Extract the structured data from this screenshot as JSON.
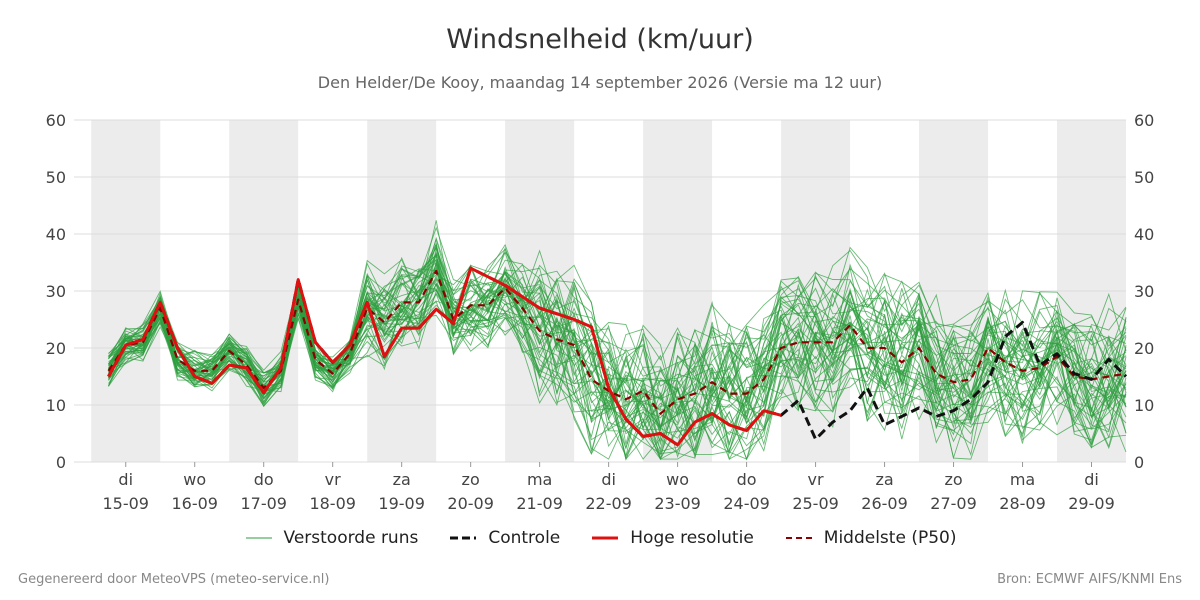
{
  "title": "Windsnelheid (km/uur)",
  "subtitle": "Den Helder/De Kooy, maandag 14 september 2026 (Versie ma 12 uur)",
  "footer_left": "Gegenereerd door MeteoVPS (meteo-service.nl)",
  "footer_right": "Bron: ECMWF AIFS/KNMI Ens",
  "colors": {
    "ensemble": "#2e9e3e",
    "control": "#111111",
    "high_res": "#e01010",
    "median": "#8b0000",
    "band": "#ececec",
    "grid": "#dddddd"
  },
  "legend": [
    {
      "label": "Verstoorde runs",
      "style": "thin-green",
      "color": "#2e9e3e"
    },
    {
      "label": "Controle",
      "style": "dashed-black",
      "color": "#111111"
    },
    {
      "label": "Hoge resolutie",
      "style": "solid-red",
      "color": "#e01010"
    },
    {
      "label": "Middelste (P50)",
      "style": "dashed-darkred",
      "color": "#8b0000"
    }
  ],
  "chart_data": {
    "type": "line",
    "ylim": [
      0,
      60
    ],
    "y_ticks": [
      0,
      10,
      20,
      30,
      40,
      50,
      60
    ],
    "x_unit": "days from di 15-09",
    "xlim": [
      -0.75,
      14.5
    ],
    "grid": true,
    "legend_position": "bottom",
    "day_ticks": [
      {
        "day": "di",
        "date": "15-09"
      },
      {
        "day": "wo",
        "date": "16-09"
      },
      {
        "day": "do",
        "date": "17-09"
      },
      {
        "day": "vr",
        "date": "18-09"
      },
      {
        "day": "za",
        "date": "19-09"
      },
      {
        "day": "zo",
        "date": "20-09"
      },
      {
        "day": "ma",
        "date": "21-09"
      },
      {
        "day": "di",
        "date": "22-09"
      },
      {
        "day": "wo",
        "date": "23-09"
      },
      {
        "day": "do",
        "date": "24-09"
      },
      {
        "day": "vr",
        "date": "25-09"
      },
      {
        "day": "za",
        "date": "26-09"
      },
      {
        "day": "zo",
        "date": "27-09"
      },
      {
        "day": "ma",
        "date": "28-09"
      },
      {
        "day": "di",
        "date": "29-09"
      }
    ],
    "shaded_days": [
      0,
      2,
      4,
      6,
      8,
      10,
      12,
      14
    ],
    "series": [
      {
        "name": "Hoge resolutie",
        "x": [
          -0.25,
          0,
          0.25,
          0.5,
          0.75,
          1,
          1.25,
          1.5,
          1.75,
          2,
          2.25,
          2.5,
          2.75,
          3,
          3.25,
          3.5,
          3.75,
          4,
          4.25,
          4.5,
          4.75,
          5,
          5.5,
          6,
          6.5,
          6.75,
          7,
          7.25,
          7.5,
          7.75,
          8,
          8.25,
          8.5,
          8.75,
          9,
          9.25,
          9.5
        ],
        "y": [
          15,
          20.5,
          21.5,
          28,
          20,
          15,
          13.8,
          17,
          16.5,
          12.2,
          16.5,
          32,
          21,
          17.5,
          20.5,
          28,
          18.5,
          23.5,
          23.5,
          26.8,
          24.3,
          34,
          31,
          27,
          25,
          23.7,
          13,
          7.5,
          4.5,
          5,
          3,
          7,
          8.5,
          6.5,
          5.5,
          9,
          8.2
        ]
      },
      {
        "name": "Controle",
        "x": [
          -0.25,
          0,
          0.25,
          0.5,
          0.75,
          1,
          1.25,
          1.5,
          1.75,
          2,
          2.25,
          2.5,
          2.75,
          3,
          3.25,
          3.5,
          3.75,
          4,
          4.25,
          4.5,
          4.75,
          5,
          5.5,
          6,
          6.5,
          6.75,
          7,
          7.25,
          7.5,
          7.75,
          8,
          8.25,
          8.5,
          8.75,
          9,
          9.25,
          9.5,
          9.75,
          10,
          10.25,
          10.5,
          10.75,
          11,
          11.25,
          11.5,
          11.75,
          12,
          12.25,
          12.5,
          12.75,
          13,
          13.25,
          13.5,
          13.75,
          14,
          14.25,
          14.5
        ],
        "y": [
          15,
          20.5,
          21.5,
          28,
          20,
          15,
          13.8,
          17,
          16.5,
          12.2,
          16.5,
          32,
          21,
          17.5,
          20.5,
          28,
          18.5,
          23.5,
          23.5,
          26.8,
          24.3,
          34,
          31,
          27,
          25,
          23.7,
          13,
          7.5,
          4.5,
          5,
          3,
          7,
          8.5,
          6.5,
          5.5,
          9,
          8.2,
          10.8,
          4,
          7,
          9,
          13,
          6.5,
          8,
          9.5,
          8,
          9,
          11,
          14,
          22,
          24.5,
          17,
          19,
          15.5,
          14.5,
          18,
          15
        ]
      },
      {
        "name": "Middelste (P50)",
        "x": [
          -0.25,
          0,
          0.25,
          0.5,
          0.75,
          1,
          1.25,
          1.5,
          1.75,
          2,
          2.25,
          2.5,
          2.75,
          3,
          3.25,
          3.5,
          3.75,
          4,
          4.25,
          4.5,
          4.75,
          5,
          5.25,
          5.5,
          5.75,
          6,
          6.25,
          6.5,
          6.75,
          7,
          7.25,
          7.5,
          7.75,
          8,
          8.25,
          8.5,
          8.75,
          9,
          9.25,
          9.5,
          9.75,
          10,
          10.25,
          10.5,
          10.75,
          11,
          11.25,
          11.5,
          11.75,
          12,
          12.25,
          12.5,
          12.75,
          13,
          13.25,
          13.5,
          13.75,
          14,
          14.25,
          14.5
        ],
        "y": [
          16,
          20.5,
          21,
          27,
          18,
          16,
          16,
          19.5,
          17,
          13,
          16,
          28.5,
          18,
          15.5,
          19,
          27,
          24.5,
          28,
          28,
          33.5,
          25,
          27.5,
          27.5,
          30.5,
          27,
          23,
          21.5,
          20.5,
          14.5,
          12.5,
          11,
          12.5,
          8.5,
          11,
          12,
          14,
          12,
          12,
          14.5,
          20,
          21,
          21,
          21,
          24,
          20,
          20,
          17.5,
          20,
          15.5,
          14,
          14.5,
          20,
          17.5,
          16,
          16.5,
          18.5,
          15,
          14.5,
          15,
          15.5
        ]
      }
    ]
  }
}
